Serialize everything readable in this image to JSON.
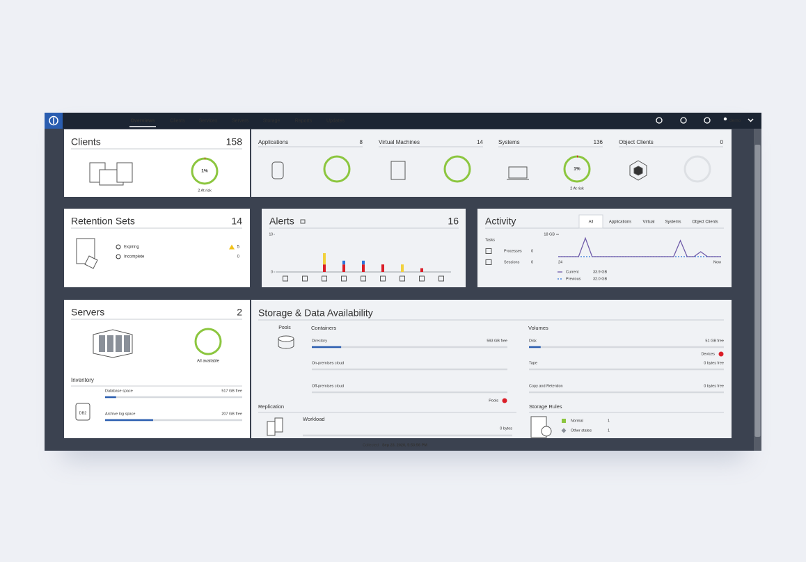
{
  "nav": {
    "items": [
      "Overviews",
      "Clients",
      "Services",
      "Servers",
      "Storage",
      "Reports",
      "Updates"
    ],
    "user": "demo"
  },
  "clients": {
    "title": "Clients",
    "count": 158,
    "at_risk": {
      "value": 1,
      "label": "1%"
    },
    "at_risk_label": "2 At risk"
  },
  "workloads": [
    {
      "name": "Applications",
      "count": 8
    },
    {
      "name": "Virtual Machines",
      "count": 14
    },
    {
      "name": "Systems",
      "count": 136,
      "at_risk": {
        "value": 1,
        "label": "1%"
      },
      "at_risk_label": "2 At risk"
    },
    {
      "name": "Object Clients",
      "count": 0
    }
  ],
  "retention_sets": {
    "title": "Retention Sets",
    "count": 14,
    "items": [
      {
        "label": "Expiring",
        "count": 5
      },
      {
        "label": "Incomplete",
        "count": 0
      }
    ]
  },
  "alerts": {
    "title": "Alerts",
    "count": 16,
    "chart_data": {
      "type": "bar",
      "stacked": true,
      "categories": [
        null,
        null,
        null,
        null,
        null,
        null,
        null,
        null,
        null
      ],
      "series": [
        {
          "color": "#da1e28",
          "values": [
            0,
            0,
            2,
            2,
            2,
            2,
            0,
            1,
            0
          ]
        },
        {
          "color": "#2d74da",
          "values": [
            0,
            0,
            0,
            1,
            1,
            0,
            0,
            0,
            0
          ]
        },
        {
          "color": "#f1d13e",
          "values": [
            0,
            0,
            3,
            0,
            0,
            0,
            2,
            0,
            0
          ]
        }
      ],
      "ylim": [
        0,
        10
      ],
      "yticks": [
        0,
        10
      ]
    }
  },
  "activity": {
    "title": "Activity",
    "tabs": [
      "All",
      "Applications",
      "Virtual",
      "Systems",
      "Object Clients"
    ],
    "tasks_label": "Tasks",
    "tasks": [
      {
        "label": "Processes",
        "count": 0
      },
      {
        "label": "Sessions",
        "count": 0
      }
    ],
    "chart_data": {
      "type": "line",
      "categories": [
        "24",
        null,
        null,
        null,
        null,
        null,
        null,
        null,
        null,
        null,
        null,
        null,
        null,
        null,
        null,
        null,
        null,
        null,
        null,
        null,
        null,
        null,
        null,
        null,
        "Now"
      ],
      "series": [
        {
          "name": "Previous",
          "total": "32.0 GB",
          "color": "#2d74da",
          "dashed": true,
          "values": [
            0,
            0,
            0,
            0,
            0,
            0,
            0,
            0,
            0,
            0,
            0,
            0,
            0,
            0,
            0,
            0,
            0,
            0,
            0,
            0,
            0,
            0,
            0,
            0,
            0
          ]
        },
        {
          "name": "Current",
          "total": "33.9 GB",
          "color": "#6e5aa8",
          "values": [
            0,
            0,
            0,
            0,
            15,
            0,
            0,
            0,
            0,
            0,
            0,
            0,
            0,
            0,
            0,
            0,
            0,
            0,
            13,
            0,
            0,
            4,
            0,
            0,
            0
          ]
        }
      ],
      "ylim": [
        0,
        18
      ],
      "yticks": [
        {
          "value": 18,
          "label": "18 GB"
        }
      ]
    }
  },
  "servers": {
    "title": "Servers",
    "count": 2,
    "status": "All available",
    "inventory_title": "Inventory",
    "icon_label": "DB2",
    "inventory": [
      {
        "label": "Database space",
        "free": "517 GB free",
        "used_percent": 8
      },
      {
        "label": "Archive log space",
        "free": "207 GB free",
        "used_percent": 35
      }
    ]
  },
  "storage": {
    "title": "Storage & Data Availability",
    "pools_label": "Pools",
    "containers": {
      "title": "Containers",
      "items": [
        {
          "label": "Directory",
          "free": "593 GB free",
          "used_percent": 15
        },
        {
          "label": "On-premises cloud",
          "used_percent": 0
        },
        {
          "label": "Off-premises cloud",
          "used_percent": 0
        }
      ],
      "status": "Pools"
    },
    "volumes": {
      "title": "Volumes",
      "items": [
        {
          "label": "Disk",
          "free": "51 GB free",
          "used_percent": 6
        },
        {
          "label": "Tape",
          "free": "0 bytes free",
          "used_percent": 0
        },
        {
          "label": "Copy and Retention",
          "free": "0 bytes free",
          "used_percent": 0
        }
      ],
      "status": "Devices"
    },
    "replication": {
      "title": "Replication",
      "workload": {
        "label": "Workload",
        "free": "0 bytes",
        "used_percent": 0
      }
    },
    "storage_rules": {
      "title": "Storage Rules",
      "items": [
        {
          "label": "Normal",
          "count": 1
        },
        {
          "label": "Other states",
          "count": 1
        }
      ]
    }
  },
  "footer": {
    "label": "Collected",
    "timestamp": "Sep 23, 2020, 5:53:56 PM"
  }
}
